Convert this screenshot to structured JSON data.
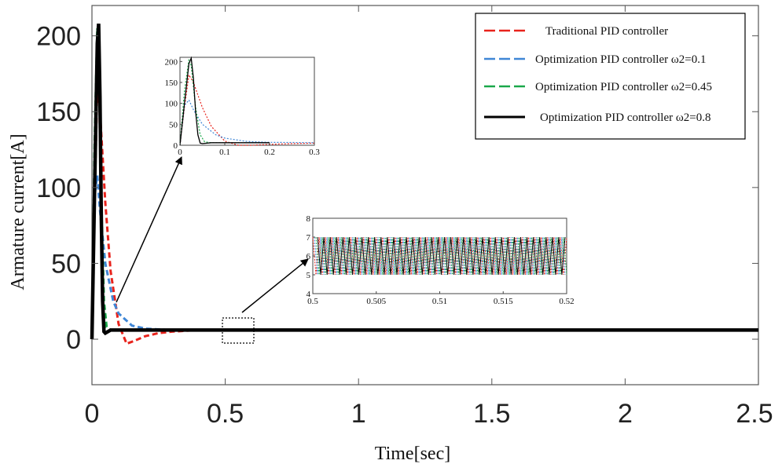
{
  "chart_data": {
    "type": "line",
    "title": "",
    "xlabel": "Time[sec]",
    "ylabel": "Armature current[A]",
    "xlim": [
      0,
      2.5
    ],
    "ylim": [
      -30,
      220
    ],
    "xticks": [
      "0",
      "0.5",
      "1",
      "1.5",
      "2",
      "2.5"
    ],
    "yticks": [
      "0",
      "50",
      "100",
      "150",
      "200"
    ],
    "grid": false,
    "legend_position": "top-right",
    "series": [
      {
        "name": "Traditional PID controller",
        "color": "#e8231c",
        "style": "dashed",
        "x": [
          0,
          0.01,
          0.02,
          0.03,
          0.05,
          0.07,
          0.1,
          0.13,
          0.16,
          0.2,
          0.25,
          0.3,
          0.4,
          0.6,
          1.0,
          1.5,
          2.0,
          2.5
        ],
        "y": [
          0,
          90,
          168,
          150,
          90,
          45,
          10,
          -3,
          -1,
          2,
          4,
          5,
          6,
          6,
          6,
          6,
          6,
          6
        ]
      },
      {
        "name": "Optimization PID controller ω2=0.1",
        "color": "#3f86d6",
        "style": "dashed",
        "x": [
          0,
          0.01,
          0.02,
          0.03,
          0.05,
          0.08,
          0.1,
          0.15,
          0.2,
          0.25,
          0.3,
          0.4,
          0.6,
          1.0,
          1.5,
          2.0,
          2.5
        ],
        "y": [
          0,
          95,
          108,
          85,
          50,
          25,
          17,
          9,
          7,
          6.5,
          6,
          6,
          6,
          6,
          6,
          6,
          6
        ]
      },
      {
        "name": "Optimization PID controller ω2=0.45",
        "color": "#1aa84a",
        "style": "dashed",
        "x": [
          0,
          0.01,
          0.02,
          0.025,
          0.035,
          0.045,
          0.055,
          0.07,
          0.1,
          0.2,
          0.5,
          1.0,
          1.5,
          2.0,
          2.5
        ],
        "y": [
          0,
          130,
          205,
          190,
          90,
          25,
          8,
          6,
          6,
          6,
          6,
          6,
          6,
          6,
          6
        ]
      },
      {
        "name": "Optimization PID controller ω2=0.8",
        "color": "#000000",
        "style": "solid",
        "x": [
          0,
          0.01,
          0.02,
          0.025,
          0.03,
          0.035,
          0.04,
          0.045,
          0.05,
          0.07,
          0.1,
          0.2,
          0.5,
          1.0,
          1.5,
          2.0,
          2.5
        ],
        "y": [
          0,
          100,
          195,
          208,
          160,
          80,
          25,
          5,
          4,
          6,
          6,
          6,
          6,
          6,
          6,
          6,
          6
        ]
      }
    ],
    "insets": [
      {
        "name": "start-up transient zoom",
        "xlim": [
          0,
          0.3
        ],
        "ylim": [
          0,
          210
        ],
        "xticks": [
          "0",
          "0.1",
          "0.2",
          "0.3"
        ],
        "yticks": [
          "0",
          "50",
          "100",
          "150",
          "200"
        ]
      },
      {
        "name": "steady-state ripple zoom",
        "xlim": [
          0.5,
          0.52
        ],
        "ylim": [
          4,
          8
        ],
        "xticks": [
          "0.5",
          "0.505",
          "0.51",
          "0.515",
          "0.52"
        ],
        "yticks": [
          "4",
          "5",
          "6",
          "7",
          "8"
        ],
        "ripple_range": [
          5,
          7
        ],
        "ripple_cycles": 40
      }
    ]
  }
}
